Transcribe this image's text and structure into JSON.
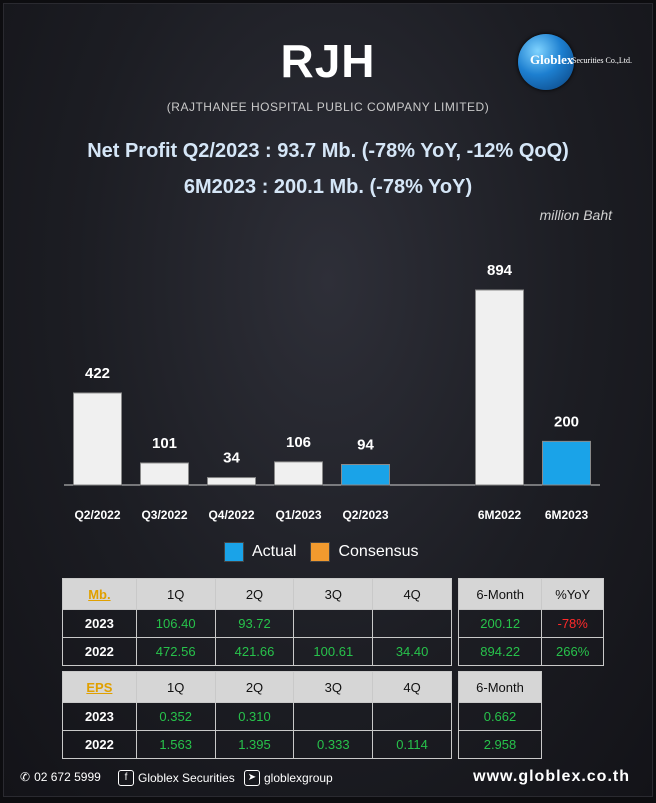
{
  "header": {
    "ticker": "RJH",
    "company": "(RAJTHANEE HOSPITAL PUBLIC COMPANY LIMITED)",
    "logo_text": "Globlex",
    "logo_sub": "Securities Co.,Ltd.",
    "headline1": "Net Profit  Q2/2023 : 93.7 Mb. (-78% YoY, -12% QoQ)",
    "headline2": "6M2023 : 200.1 Mb. (-78% YoY)",
    "unit": "million Baht"
  },
  "colors": {
    "actual": "#1aa3e8",
    "consensus": "#f29a2e",
    "past": "#f0f0f0",
    "positive": "#27c24b",
    "negative": "#ff2a2a"
  },
  "chart_data": {
    "type": "bar",
    "title": "",
    "xlabel": "",
    "ylabel": "",
    "categories": [
      "Q2/2022",
      "Q3/2022",
      "Q4/2022",
      "Q1/2023",
      "Q2/2023",
      "",
      "6M2022",
      "6M2023"
    ],
    "values": [
      422,
      101,
      34,
      106,
      94,
      null,
      894,
      200
    ],
    "data_labels": [
      "422",
      "101",
      "34",
      "106",
      "94",
      "",
      "894",
      "200"
    ],
    "bar_colors": [
      "past",
      "past",
      "past",
      "past",
      "actual",
      "",
      "past",
      "actual"
    ],
    "ylim": [
      0,
      894
    ],
    "grid": false,
    "legend": [
      {
        "label": "Actual",
        "color": "#1aa3e8"
      },
      {
        "label": "Consensus",
        "color": "#f29a2e"
      }
    ],
    "legend_placement": "bottom"
  },
  "profit_table": {
    "header": [
      "Mb.",
      "1Q",
      "2Q",
      "3Q",
      "4Q"
    ],
    "rows": [
      {
        "year": "2023",
        "cells": [
          "106.40",
          "93.72",
          "",
          ""
        ]
      },
      {
        "year": "2022",
        "cells": [
          "472.56",
          "421.66",
          "100.61",
          "34.40"
        ]
      }
    ]
  },
  "profit_summary": {
    "header": [
      "6-Month",
      "%YoY"
    ],
    "rows": [
      [
        "200.12",
        "-78%"
      ],
      [
        "894.22",
        "266%"
      ]
    ]
  },
  "eps_table": {
    "header": [
      "EPS",
      "1Q",
      "2Q",
      "3Q",
      "4Q"
    ],
    "rows": [
      {
        "year": "2023",
        "cells": [
          "0.352",
          "0.310",
          "",
          ""
        ]
      },
      {
        "year": "2022",
        "cells": [
          "1.563",
          "1.395",
          "0.333",
          "0.114"
        ]
      }
    ]
  },
  "eps_summary": {
    "header": [
      "6-Month"
    ],
    "rows": [
      [
        "0.662"
      ],
      [
        "2.958"
      ]
    ]
  },
  "footer": {
    "phone": "02 672 5999",
    "facebook": "Globlex Securities",
    "telegram": "globlexgroup",
    "website": "www.globlex.co.th"
  }
}
